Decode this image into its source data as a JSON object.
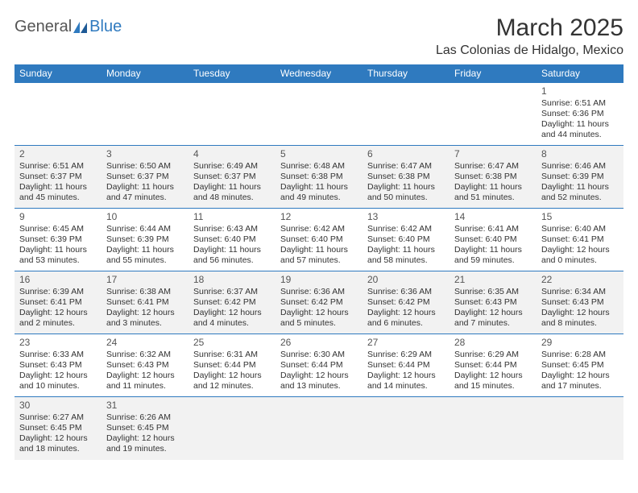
{
  "logo": {
    "part1": "General",
    "part2": "Blue"
  },
  "title": "March 2025",
  "location": "Las Colonias de Hidalgo, Mexico",
  "colors": {
    "header_bg": "#2f7abf",
    "header_fg": "#ffffff",
    "alt_row_bg": "#f2f2f2",
    "row_border": "#2f7abf",
    "text": "#333333",
    "daynum": "#555555"
  },
  "days_of_week": [
    "Sunday",
    "Monday",
    "Tuesday",
    "Wednesday",
    "Thursday",
    "Friday",
    "Saturday"
  ],
  "weeks": [
    {
      "alt": false,
      "cells": [
        null,
        null,
        null,
        null,
        null,
        null,
        {
          "n": "1",
          "sr": "Sunrise: 6:51 AM",
          "ss": "Sunset: 6:36 PM",
          "dl": "Daylight: 11 hours and 44 minutes."
        }
      ]
    },
    {
      "alt": true,
      "cells": [
        {
          "n": "2",
          "sr": "Sunrise: 6:51 AM",
          "ss": "Sunset: 6:37 PM",
          "dl": "Daylight: 11 hours and 45 minutes."
        },
        {
          "n": "3",
          "sr": "Sunrise: 6:50 AM",
          "ss": "Sunset: 6:37 PM",
          "dl": "Daylight: 11 hours and 47 minutes."
        },
        {
          "n": "4",
          "sr": "Sunrise: 6:49 AM",
          "ss": "Sunset: 6:37 PM",
          "dl": "Daylight: 11 hours and 48 minutes."
        },
        {
          "n": "5",
          "sr": "Sunrise: 6:48 AM",
          "ss": "Sunset: 6:38 PM",
          "dl": "Daylight: 11 hours and 49 minutes."
        },
        {
          "n": "6",
          "sr": "Sunrise: 6:47 AM",
          "ss": "Sunset: 6:38 PM",
          "dl": "Daylight: 11 hours and 50 minutes."
        },
        {
          "n": "7",
          "sr": "Sunrise: 6:47 AM",
          "ss": "Sunset: 6:38 PM",
          "dl": "Daylight: 11 hours and 51 minutes."
        },
        {
          "n": "8",
          "sr": "Sunrise: 6:46 AM",
          "ss": "Sunset: 6:39 PM",
          "dl": "Daylight: 11 hours and 52 minutes."
        }
      ]
    },
    {
      "alt": false,
      "cells": [
        {
          "n": "9",
          "sr": "Sunrise: 6:45 AM",
          "ss": "Sunset: 6:39 PM",
          "dl": "Daylight: 11 hours and 53 minutes."
        },
        {
          "n": "10",
          "sr": "Sunrise: 6:44 AM",
          "ss": "Sunset: 6:39 PM",
          "dl": "Daylight: 11 hours and 55 minutes."
        },
        {
          "n": "11",
          "sr": "Sunrise: 6:43 AM",
          "ss": "Sunset: 6:40 PM",
          "dl": "Daylight: 11 hours and 56 minutes."
        },
        {
          "n": "12",
          "sr": "Sunrise: 6:42 AM",
          "ss": "Sunset: 6:40 PM",
          "dl": "Daylight: 11 hours and 57 minutes."
        },
        {
          "n": "13",
          "sr": "Sunrise: 6:42 AM",
          "ss": "Sunset: 6:40 PM",
          "dl": "Daylight: 11 hours and 58 minutes."
        },
        {
          "n": "14",
          "sr": "Sunrise: 6:41 AM",
          "ss": "Sunset: 6:40 PM",
          "dl": "Daylight: 11 hours and 59 minutes."
        },
        {
          "n": "15",
          "sr": "Sunrise: 6:40 AM",
          "ss": "Sunset: 6:41 PM",
          "dl": "Daylight: 12 hours and 0 minutes."
        }
      ]
    },
    {
      "alt": true,
      "cells": [
        {
          "n": "16",
          "sr": "Sunrise: 6:39 AM",
          "ss": "Sunset: 6:41 PM",
          "dl": "Daylight: 12 hours and 2 minutes."
        },
        {
          "n": "17",
          "sr": "Sunrise: 6:38 AM",
          "ss": "Sunset: 6:41 PM",
          "dl": "Daylight: 12 hours and 3 minutes."
        },
        {
          "n": "18",
          "sr": "Sunrise: 6:37 AM",
          "ss": "Sunset: 6:42 PM",
          "dl": "Daylight: 12 hours and 4 minutes."
        },
        {
          "n": "19",
          "sr": "Sunrise: 6:36 AM",
          "ss": "Sunset: 6:42 PM",
          "dl": "Daylight: 12 hours and 5 minutes."
        },
        {
          "n": "20",
          "sr": "Sunrise: 6:36 AM",
          "ss": "Sunset: 6:42 PM",
          "dl": "Daylight: 12 hours and 6 minutes."
        },
        {
          "n": "21",
          "sr": "Sunrise: 6:35 AM",
          "ss": "Sunset: 6:43 PM",
          "dl": "Daylight: 12 hours and 7 minutes."
        },
        {
          "n": "22",
          "sr": "Sunrise: 6:34 AM",
          "ss": "Sunset: 6:43 PM",
          "dl": "Daylight: 12 hours and 8 minutes."
        }
      ]
    },
    {
      "alt": false,
      "cells": [
        {
          "n": "23",
          "sr": "Sunrise: 6:33 AM",
          "ss": "Sunset: 6:43 PM",
          "dl": "Daylight: 12 hours and 10 minutes."
        },
        {
          "n": "24",
          "sr": "Sunrise: 6:32 AM",
          "ss": "Sunset: 6:43 PM",
          "dl": "Daylight: 12 hours and 11 minutes."
        },
        {
          "n": "25",
          "sr": "Sunrise: 6:31 AM",
          "ss": "Sunset: 6:44 PM",
          "dl": "Daylight: 12 hours and 12 minutes."
        },
        {
          "n": "26",
          "sr": "Sunrise: 6:30 AM",
          "ss": "Sunset: 6:44 PM",
          "dl": "Daylight: 12 hours and 13 minutes."
        },
        {
          "n": "27",
          "sr": "Sunrise: 6:29 AM",
          "ss": "Sunset: 6:44 PM",
          "dl": "Daylight: 12 hours and 14 minutes."
        },
        {
          "n": "28",
          "sr": "Sunrise: 6:29 AM",
          "ss": "Sunset: 6:44 PM",
          "dl": "Daylight: 12 hours and 15 minutes."
        },
        {
          "n": "29",
          "sr": "Sunrise: 6:28 AM",
          "ss": "Sunset: 6:45 PM",
          "dl": "Daylight: 12 hours and 17 minutes."
        }
      ]
    },
    {
      "alt": true,
      "last": true,
      "cells": [
        {
          "n": "30",
          "sr": "Sunrise: 6:27 AM",
          "ss": "Sunset: 6:45 PM",
          "dl": "Daylight: 12 hours and 18 minutes."
        },
        {
          "n": "31",
          "sr": "Sunrise: 6:26 AM",
          "ss": "Sunset: 6:45 PM",
          "dl": "Daylight: 12 hours and 19 minutes."
        },
        null,
        null,
        null,
        null,
        null
      ]
    }
  ]
}
